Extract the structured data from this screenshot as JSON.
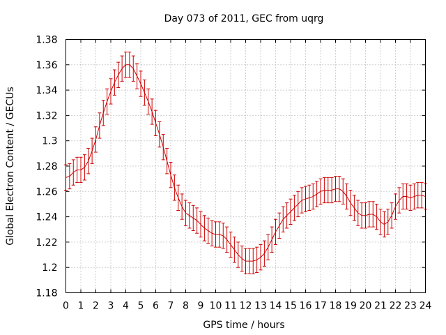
{
  "chart_data": {
    "type": "line",
    "title": "Day 073 of 2011, GEC from uqrg",
    "xlabel": "GPS time / hours",
    "ylabel": "Global Electron Content / GECUs",
    "xlim": [
      0,
      24
    ],
    "ylim": [
      1.18,
      1.38
    ],
    "x_ticks": [
      "0",
      "1",
      "2",
      "3",
      "4",
      "5",
      "6",
      "7",
      "8",
      "9",
      "10",
      "11",
      "12",
      "13",
      "14",
      "15",
      "16",
      "17",
      "18",
      "19",
      "20",
      "21",
      "22",
      "23",
      "24"
    ],
    "y_ticks": [
      "1.18",
      "1.2",
      "1.22",
      "1.24",
      "1.26",
      "1.28",
      "1.3",
      "1.32",
      "1.34",
      "1.36",
      "1.38"
    ],
    "grid": true,
    "series": [
      {
        "color": "#cc0000",
        "error_bar": 0.01,
        "x": [
          0,
          0.25,
          0.5,
          0.75,
          1,
          1.25,
          1.5,
          1.75,
          2,
          2.25,
          2.5,
          2.75,
          3,
          3.25,
          3.5,
          3.75,
          4,
          4.25,
          4.5,
          4.75,
          5,
          5.25,
          5.5,
          5.75,
          6,
          6.25,
          6.5,
          6.75,
          7,
          7.25,
          7.5,
          7.75,
          8,
          8.25,
          8.5,
          8.75,
          9,
          9.25,
          9.5,
          9.75,
          10,
          10.25,
          10.5,
          10.75,
          11,
          11.25,
          11.5,
          11.75,
          12,
          12.25,
          12.5,
          12.75,
          13,
          13.25,
          13.5,
          13.75,
          14,
          14.25,
          14.5,
          14.75,
          15,
          15.25,
          15.5,
          15.75,
          16,
          16.25,
          16.5,
          16.75,
          17,
          17.25,
          17.5,
          17.75,
          18,
          18.25,
          18.5,
          18.75,
          19,
          19.25,
          19.5,
          19.75,
          20,
          20.25,
          20.5,
          20.75,
          21,
          21.25,
          21.5,
          21.75,
          22,
          22.25,
          22.5,
          22.75,
          23,
          23.25,
          23.5,
          23.75,
          24
        ],
        "y": [
          1.271,
          1.272,
          1.275,
          1.277,
          1.277,
          1.279,
          1.284,
          1.292,
          1.301,
          1.312,
          1.322,
          1.331,
          1.339,
          1.346,
          1.352,
          1.357,
          1.36,
          1.36,
          1.357,
          1.351,
          1.345,
          1.338,
          1.331,
          1.323,
          1.314,
          1.305,
          1.295,
          1.284,
          1.273,
          1.263,
          1.255,
          1.248,
          1.243,
          1.241,
          1.239,
          1.237,
          1.234,
          1.231,
          1.229,
          1.227,
          1.226,
          1.226,
          1.225,
          1.222,
          1.218,
          1.214,
          1.21,
          1.207,
          1.205,
          1.205,
          1.205,
          1.206,
          1.208,
          1.211,
          1.216,
          1.222,
          1.228,
          1.233,
          1.238,
          1.241,
          1.244,
          1.247,
          1.25,
          1.253,
          1.254,
          1.255,
          1.256,
          1.258,
          1.26,
          1.261,
          1.261,
          1.261,
          1.262,
          1.262,
          1.26,
          1.256,
          1.251,
          1.247,
          1.243,
          1.241,
          1.241,
          1.242,
          1.242,
          1.24,
          1.236,
          1.234,
          1.236,
          1.241,
          1.248,
          1.253,
          1.256,
          1.256,
          1.255,
          1.256,
          1.257,
          1.257,
          1.256
        ]
      }
    ]
  }
}
